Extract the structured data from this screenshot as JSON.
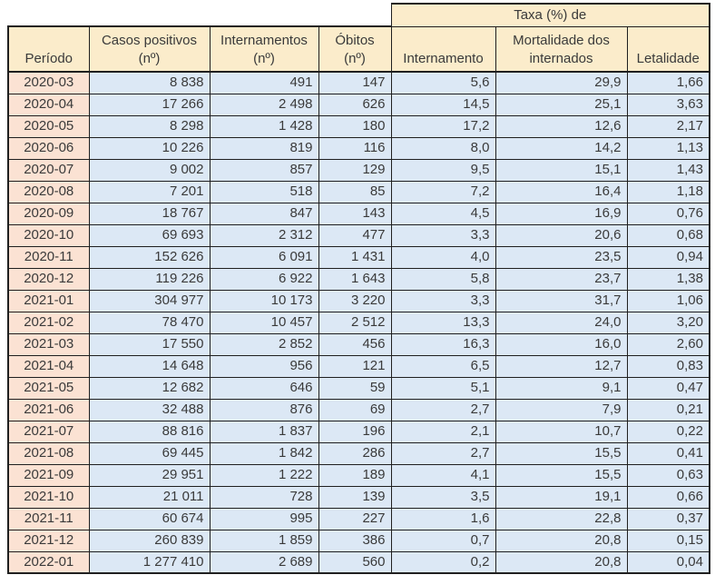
{
  "colors": {
    "background": "#ffffff",
    "header_bg": "#fbeccb",
    "period_bg": "#fbe2d3",
    "data_bg": "#dce8f5",
    "border": "#1f1f1f",
    "text": "#3a3a3a"
  },
  "chart_data": {
    "type": "table",
    "group_header": "Taxa (%) de",
    "group_header_spans_columns": [
      "Internamento",
      "Mortalidade dos internados",
      "Letalidade"
    ],
    "headers": [
      "Período",
      "Casos positivos\n(nº)",
      "Internamentos\n(nº)",
      "Óbitos\n(nº)",
      "Internamento",
      "Mortalidade dos\ninternados",
      "Letalidade"
    ],
    "columns": [
      "Período",
      "Casos positivos (nº)",
      "Internamentos (nº)",
      "Óbitos (nº)",
      "Taxa (%) de Internamento",
      "Taxa (%) de Mortalidade dos internados",
      "Taxa (%) de Letalidade"
    ],
    "rows": [
      [
        "2020-03",
        "8 838",
        "491",
        "147",
        "5,6",
        "29,9",
        "1,66"
      ],
      [
        "2020-04",
        "17 266",
        "2 498",
        "626",
        "14,5",
        "25,1",
        "3,63"
      ],
      [
        "2020-05",
        "8 298",
        "1 428",
        "180",
        "17,2",
        "12,6",
        "2,17"
      ],
      [
        "2020-06",
        "10 226",
        "819",
        "116",
        "8,0",
        "14,2",
        "1,13"
      ],
      [
        "2020-07",
        "9 002",
        "857",
        "129",
        "9,5",
        "15,1",
        "1,43"
      ],
      [
        "2020-08",
        "7 201",
        "518",
        "85",
        "7,2",
        "16,4",
        "1,18"
      ],
      [
        "2020-09",
        "18 767",
        "847",
        "143",
        "4,5",
        "16,9",
        "0,76"
      ],
      [
        "2020-10",
        "69 693",
        "2 312",
        "477",
        "3,3",
        "20,6",
        "0,68"
      ],
      [
        "2020-11",
        "152 626",
        "6 091",
        "1 431",
        "4,0",
        "23,5",
        "0,94"
      ],
      [
        "2020-12",
        "119 226",
        "6 922",
        "1 643",
        "5,8",
        "23,7",
        "1,38"
      ],
      [
        "2021-01",
        "304 977",
        "10 173",
        "3 220",
        "3,3",
        "31,7",
        "1,06"
      ],
      [
        "2021-02",
        "78 470",
        "10 457",
        "2 512",
        "13,3",
        "24,0",
        "3,20"
      ],
      [
        "2021-03",
        "17 550",
        "2 852",
        "456",
        "16,3",
        "16,0",
        "2,60"
      ],
      [
        "2021-04",
        "14 648",
        "956",
        "121",
        "6,5",
        "12,7",
        "0,83"
      ],
      [
        "2021-05",
        "12 682",
        "646",
        "59",
        "5,1",
        "9,1",
        "0,47"
      ],
      [
        "2021-06",
        "32 488",
        "876",
        "69",
        "2,7",
        "7,9",
        "0,21"
      ],
      [
        "2021-07",
        "88 816",
        "1 837",
        "196",
        "2,1",
        "10,7",
        "0,22"
      ],
      [
        "2021-08",
        "69 445",
        "1 842",
        "286",
        "2,7",
        "15,5",
        "0,41"
      ],
      [
        "2021-09",
        "29 951",
        "1 222",
        "189",
        "4,1",
        "15,5",
        "0,63"
      ],
      [
        "2021-10",
        "21 011",
        "728",
        "139",
        "3,5",
        "19,1",
        "0,66"
      ],
      [
        "2021-11",
        "60 674",
        "995",
        "227",
        "1,6",
        "22,8",
        "0,37"
      ],
      [
        "2021-12",
        "260 839",
        "1 859",
        "386",
        "0,7",
        "20,8",
        "0,15"
      ],
      [
        "2022-01",
        "1 277 410",
        "2 689",
        "560",
        "0,2",
        "20,8",
        "0,04"
      ]
    ]
  }
}
